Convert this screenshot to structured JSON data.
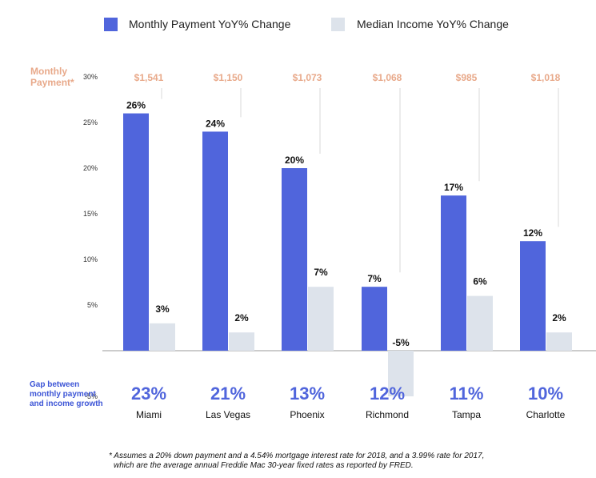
{
  "chart_data": {
    "type": "bar",
    "categories": [
      "Miami",
      "Las Vegas",
      "Phoenix",
      "Richmond",
      "Tampa",
      "Charlotte"
    ],
    "series": [
      {
        "name": "Monthly Payment YoY% Change",
        "values": [
          26,
          24,
          20,
          7,
          17,
          12
        ],
        "labels": [
          "26%",
          "24%",
          "20%",
          "7%",
          "17%",
          "12%"
        ],
        "color": "#5065dc"
      },
      {
        "name": "Median Income YoY% Change",
        "values": [
          3,
          2,
          7,
          -5,
          6,
          2
        ],
        "labels": [
          "3%",
          "2%",
          "7%",
          "-5%",
          "6%",
          "2%"
        ],
        "color": "#dde3eb"
      }
    ],
    "ylim": [
      -5,
      30
    ],
    "yticks": [
      {
        "value": 30,
        "label": "30%"
      },
      {
        "value": 25,
        "label": "25%"
      },
      {
        "value": 20,
        "label": "20%"
      },
      {
        "value": 15,
        "label": "15%"
      },
      {
        "value": 10,
        "label": "10%"
      },
      {
        "value": 5,
        "label": "5%"
      },
      {
        "value": -5,
        "label": "-5%"
      }
    ],
    "monthly_payment_label": [
      "Monthly",
      "Payment*"
    ],
    "monthly_payments": [
      "$1,541",
      "$1,150",
      "$1,073",
      "$1,068",
      "$985",
      "$1,018"
    ],
    "gap_label": [
      "Gap between",
      "monthly payment",
      "and income growth"
    ],
    "gaps": [
      "23%",
      "21%",
      "13%",
      "12%",
      "11%",
      "10%"
    ],
    "footnote": [
      "* Assumes a 20% down payment and a 4.54% mortgage interest rate for 2018, and a 3.99% rate for 2017,",
      "which are the average annual Freddie Mac 30-year fixed rates as reported by FRED."
    ],
    "legend_position": "top",
    "accent_color": "#e8a98a",
    "gap_color": "#5065dc"
  }
}
